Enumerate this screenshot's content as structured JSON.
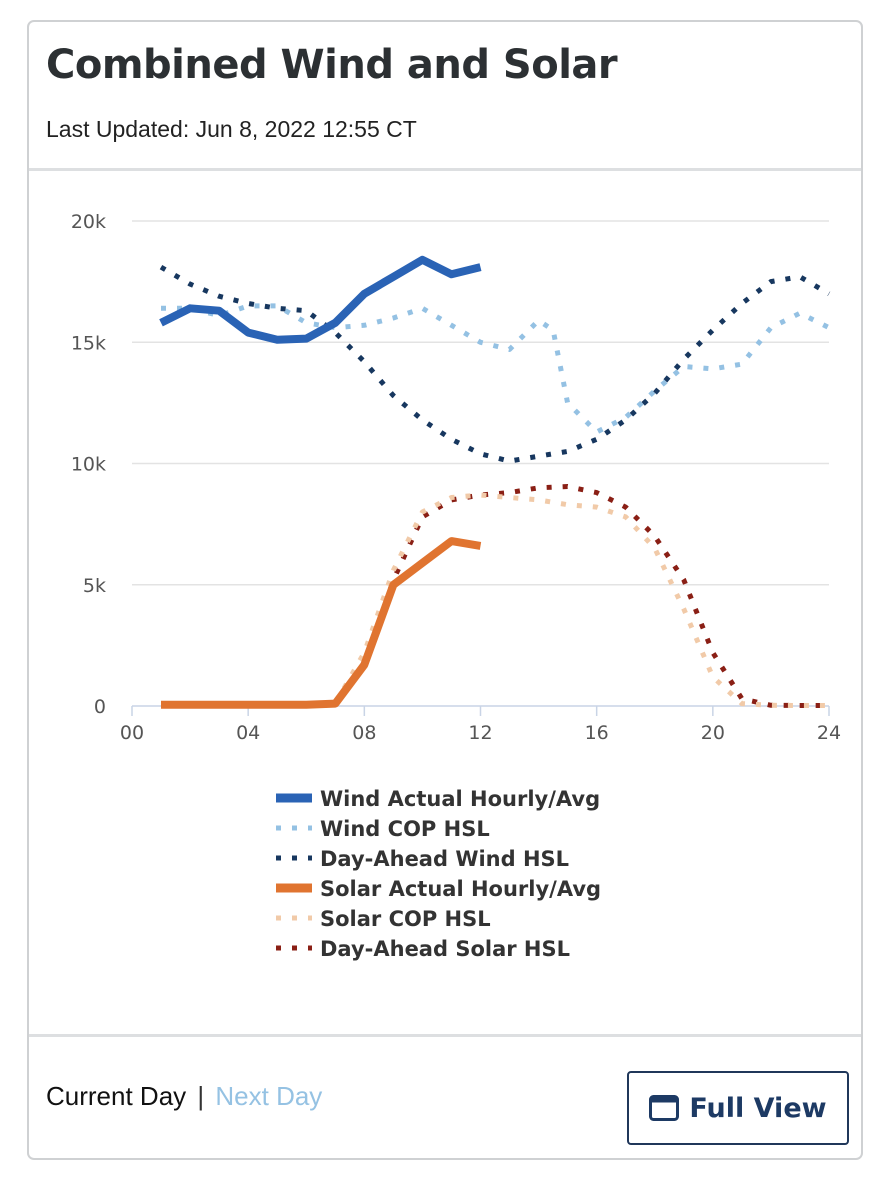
{
  "header": {
    "title": "Combined Wind and Solar",
    "last_updated": "Last Updated: Jun 8, 2022 12:55 CT"
  },
  "footer": {
    "current_day": "Current Day",
    "separator": "|",
    "next_day": "Next Day",
    "full_view_label": "Full View",
    "full_view_icon": "window-icon"
  },
  "colors": {
    "wind_actual": "#2a63b5",
    "wind_cop": "#94c1e3",
    "wind_da": "#17375f",
    "solar_actual": "#e07430",
    "solar_cop": "#f1caa8",
    "solar_da": "#8a1f15",
    "grid": "#e3e3e3",
    "axis": "#c9d4e6"
  },
  "chart_data": {
    "type": "line",
    "title": "",
    "xlabel": "",
    "ylabel": "",
    "xlim": [
      0,
      24
    ],
    "ylim": [
      0,
      20000
    ],
    "x_ticks": [
      0,
      4,
      8,
      12,
      16,
      20,
      24
    ],
    "x_tick_labels": [
      "00",
      "04",
      "08",
      "12",
      "16",
      "20",
      "24"
    ],
    "y_ticks": [
      0,
      5000,
      10000,
      15000,
      20000
    ],
    "y_tick_labels": [
      "0",
      "5k",
      "10k",
      "15k",
      "20k"
    ],
    "legend_position": "bottom",
    "series": [
      {
        "name": "Wind Actual Hourly/Avg",
        "style": "solid",
        "color": "#2a63b5",
        "x": [
          1,
          2,
          3,
          4,
          5,
          6,
          7,
          8,
          9,
          10,
          11,
          12
        ],
        "values": [
          15800,
          16400,
          16300,
          15400,
          15100,
          15150,
          15800,
          17000,
          17700,
          18400,
          17800,
          18100
        ]
      },
      {
        "name": "Wind COP HSL",
        "style": "dotted",
        "color": "#94c1e3",
        "x": [
          1,
          2,
          3,
          4,
          5,
          6,
          7,
          8,
          9,
          10,
          11,
          12,
          13,
          14,
          14.5,
          15,
          16,
          17,
          18,
          19,
          20,
          21,
          22,
          23,
          24
        ],
        "values": [
          16400,
          16400,
          16100,
          16500,
          16500,
          15800,
          15600,
          15700,
          16000,
          16400,
          15700,
          15000,
          14700,
          15900,
          15500,
          12500,
          11300,
          11900,
          13000,
          14000,
          13900,
          14100,
          15600,
          16200,
          15600
        ]
      },
      {
        "name": "Day-Ahead Wind HSL",
        "style": "dotted",
        "color": "#17375f",
        "x": [
          1,
          2,
          3,
          4,
          5,
          6,
          7,
          8,
          9,
          10,
          11,
          12,
          13,
          14,
          15,
          16,
          17,
          18,
          19,
          20,
          21,
          22,
          23,
          24
        ],
        "values": [
          18100,
          17400,
          16900,
          16600,
          16400,
          16300,
          15400,
          14200,
          12800,
          11800,
          11000,
          10400,
          10100,
          10300,
          10500,
          11000,
          11800,
          12900,
          14300,
          15500,
          16600,
          17500,
          17700,
          17000
        ]
      },
      {
        "name": "Solar Actual Hourly/Avg",
        "style": "solid",
        "color": "#e07430",
        "x": [
          1,
          2,
          3,
          4,
          5,
          6,
          7,
          8,
          9,
          10,
          11,
          12
        ],
        "values": [
          50,
          50,
          50,
          50,
          50,
          50,
          100,
          1700,
          5000,
          5900,
          6800,
          6600
        ]
      },
      {
        "name": "Solar COP HSL",
        "style": "dotted",
        "color": "#f1caa8",
        "x": [
          1,
          2,
          3,
          4,
          5,
          6,
          7,
          8,
          9,
          10,
          11,
          12,
          13,
          14,
          15,
          16,
          17,
          18,
          19,
          20,
          21,
          22,
          23,
          24
        ],
        "values": [
          50,
          50,
          50,
          50,
          50,
          50,
          100,
          2200,
          5600,
          8000,
          8600,
          8700,
          8600,
          8500,
          8300,
          8200,
          7800,
          6500,
          4000,
          1200,
          100,
          30,
          20,
          20
        ]
      },
      {
        "name": "Day-Ahead Solar HSL",
        "style": "dotted",
        "color": "#8a1f15",
        "x": [
          1,
          2,
          3,
          4,
          5,
          6,
          7,
          8,
          9,
          10,
          11,
          12,
          13,
          14,
          15,
          16,
          17,
          18,
          19,
          20,
          21,
          22,
          23,
          24
        ],
        "values": [
          50,
          50,
          50,
          50,
          50,
          50,
          100,
          1600,
          5200,
          7800,
          8500,
          8700,
          8800,
          9000,
          9050,
          8800,
          8200,
          7000,
          5200,
          2200,
          300,
          30,
          20,
          20
        ]
      }
    ]
  }
}
